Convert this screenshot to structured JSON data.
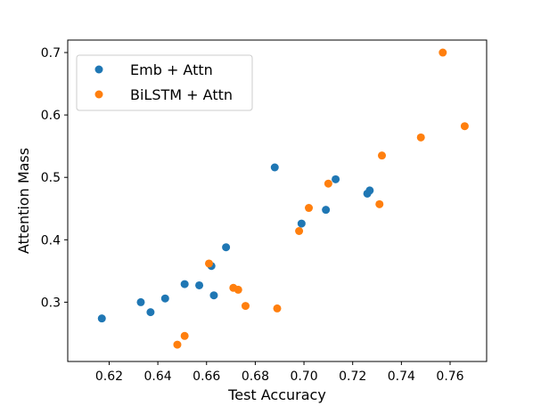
{
  "chart_data": {
    "type": "scatter",
    "title": "",
    "xlabel": "Test Accuracy",
    "ylabel": "Attention Mass",
    "xlim": [
      0.603,
      0.775
    ],
    "ylim": [
      0.205,
      0.72
    ],
    "xticks": [
      0.62,
      0.64,
      0.66,
      0.68,
      0.7,
      0.72,
      0.74,
      0.76
    ],
    "yticks": [
      0.3,
      0.4,
      0.5,
      0.6,
      0.7
    ],
    "xtick_labels": [
      "0.62",
      "0.64",
      "0.66",
      "0.68",
      "0.70",
      "0.72",
      "0.74",
      "0.76"
    ],
    "ytick_labels": [
      "0.3",
      "0.4",
      "0.5",
      "0.6",
      "0.7"
    ],
    "grid": false,
    "legend": "top-left",
    "series": [
      {
        "name": "Emb + Attn",
        "color": "#1f77b4",
        "points": [
          [
            0.617,
            0.274
          ],
          [
            0.633,
            0.3
          ],
          [
            0.637,
            0.284
          ],
          [
            0.643,
            0.306
          ],
          [
            0.651,
            0.329
          ],
          [
            0.657,
            0.327
          ],
          [
            0.662,
            0.358
          ],
          [
            0.663,
            0.311
          ],
          [
            0.668,
            0.388
          ],
          [
            0.688,
            0.516
          ],
          [
            0.699,
            0.426
          ],
          [
            0.709,
            0.448
          ],
          [
            0.713,
            0.497
          ],
          [
            0.726,
            0.474
          ],
          [
            0.727,
            0.479
          ]
        ]
      },
      {
        "name": "BiLSTM + Attn",
        "color": "#ff7f0e",
        "points": [
          [
            0.648,
            0.232
          ],
          [
            0.651,
            0.246
          ],
          [
            0.661,
            0.362
          ],
          [
            0.671,
            0.323
          ],
          [
            0.673,
            0.32
          ],
          [
            0.676,
            0.294
          ],
          [
            0.689,
            0.29
          ],
          [
            0.698,
            0.414
          ],
          [
            0.702,
            0.451
          ],
          [
            0.71,
            0.49
          ],
          [
            0.731,
            0.457
          ],
          [
            0.732,
            0.535
          ],
          [
            0.748,
            0.564
          ],
          [
            0.757,
            0.7
          ],
          [
            0.766,
            0.582
          ]
        ]
      }
    ]
  }
}
